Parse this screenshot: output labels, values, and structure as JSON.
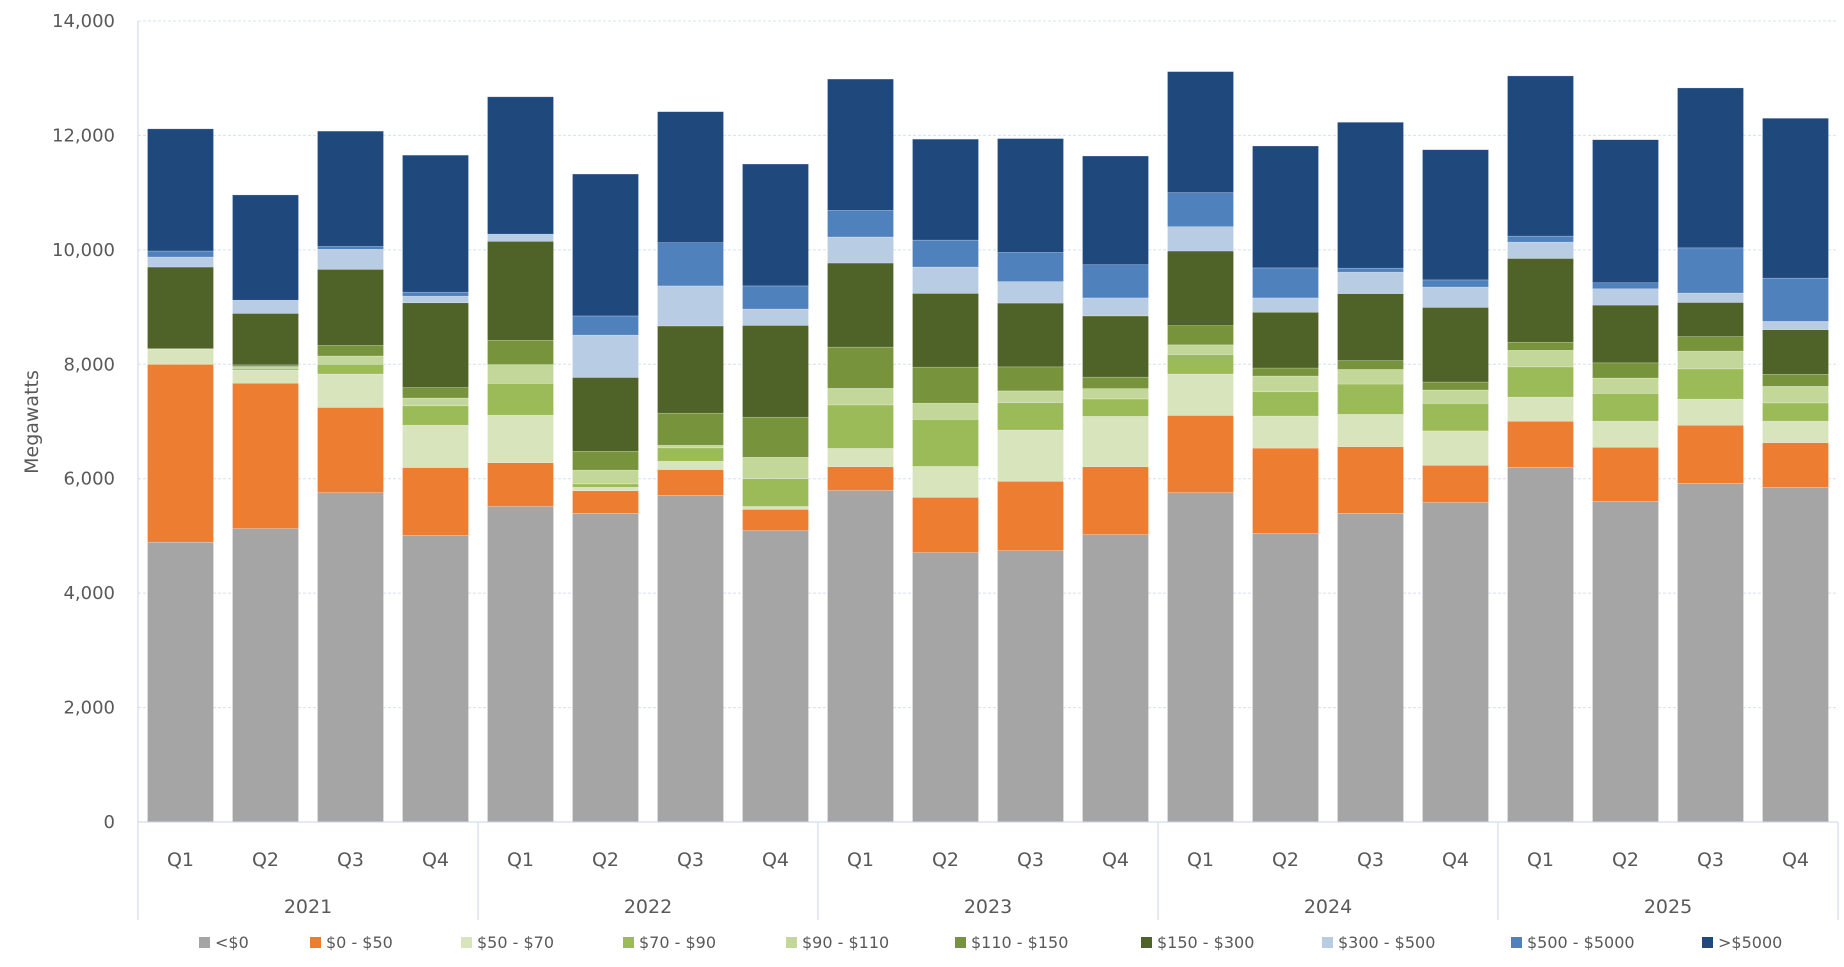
{
  "chart_data": {
    "type": "bar",
    "stacked": true,
    "title": "",
    "xlabel": "",
    "ylabel": "Megawatts",
    "ylim": [
      0,
      14000
    ],
    "yticks": [
      "0",
      "2,000",
      "4,000",
      "6,000",
      "8,000",
      "10,000",
      "12,000",
      "14,000"
    ],
    "ytick_values": [
      0,
      2000,
      4000,
      6000,
      8000,
      10000,
      12000,
      14000
    ],
    "grid": true,
    "legend_position": "bottom",
    "years": [
      "2021",
      "2022",
      "2023",
      "2024",
      "2025"
    ],
    "quarters": [
      "Q1",
      "Q2",
      "Q3",
      "Q4"
    ],
    "categories": [
      "2021 Q1",
      "2021 Q2",
      "2021 Q3",
      "2021 Q4",
      "2022 Q1",
      "2022 Q2",
      "2022 Q3",
      "2022 Q4",
      "2023 Q1",
      "2023 Q2",
      "2023 Q3",
      "2023 Q4",
      "2024 Q1",
      "2024 Q2",
      "2024 Q3",
      "2024 Q4",
      "2025 Q1",
      "2025 Q2",
      "2025 Q3",
      "2025 Q4"
    ],
    "series": [
      {
        "name": "<$0",
        "color": "#a5a5a5",
        "values": [
          4890,
          5130,
          5755,
          5010,
          5515,
          5395,
          5710,
          5095,
          5795,
          4710,
          4745,
          5025,
          5755,
          5045,
          5395,
          5585,
          6200,
          5605,
          5920,
          5850
        ]
      },
      {
        "name": "$0 - $50",
        "color": "#ed7d31",
        "values": [
          3110,
          2540,
          1490,
          1185,
          765,
          395,
          450,
          370,
          415,
          965,
          1210,
          1185,
          1350,
          1490,
          1165,
          650,
          805,
          945,
          1015,
          780
        ]
      },
      {
        "name": "$50 - $70",
        "color": "#d8e4bc",
        "values": [
          260,
          230,
          585,
          740,
          830,
          60,
          145,
          50,
          320,
          540,
          895,
          880,
          725,
          560,
          565,
          600,
          420,
          455,
          455,
          375
        ]
      },
      {
        "name": "$70 - $90",
        "color": "#9bbb59",
        "values": [
          0,
          30,
          170,
          340,
          555,
          60,
          235,
          485,
          760,
          820,
          480,
          305,
          340,
          425,
          530,
          480,
          530,
          485,
          530,
          320
        ]
      },
      {
        "name": "$90 - $110",
        "color": "#c4d79b",
        "values": [
          5,
          30,
          145,
          135,
          330,
          240,
          45,
          375,
          290,
          285,
          205,
          180,
          170,
          275,
          255,
          235,
          290,
          270,
          310,
          290
        ]
      },
      {
        "name": "$110 - $150",
        "color": "#77933c",
        "values": [
          10,
          30,
          185,
          185,
          425,
          330,
          560,
          700,
          720,
          630,
          420,
          200,
          335,
          140,
          155,
          140,
          140,
          265,
          255,
          210
        ]
      },
      {
        "name": "$150 - $300",
        "color": "#4f6228",
        "values": [
          1425,
          900,
          1330,
          1480,
          1730,
          1290,
          1525,
          1605,
          1470,
          1290,
          1115,
          1070,
          1305,
          975,
          1170,
          1305,
          1465,
          1010,
          595,
          780
        ]
      },
      {
        "name": "$300 - $500",
        "color": "#b8cce4",
        "values": [
          175,
          225,
          350,
          115,
          125,
          740,
          700,
          285,
          455,
          460,
          375,
          315,
          425,
          250,
          375,
          355,
          285,
          285,
          165,
          145
        ]
      },
      {
        "name": "$500 - $5000",
        "color": "#4f81bd",
        "values": [
          105,
          5,
          50,
          70,
          0,
          335,
          755,
          405,
          465,
          470,
          510,
          580,
          595,
          525,
          70,
          125,
          105,
          105,
          790,
          755
        ]
      },
      {
        "name": ">$5000",
        "color": "#1f497d",
        "values": [
          2135,
          1840,
          2015,
          2395,
          2400,
          2480,
          2290,
          2130,
          2295,
          1765,
          1990,
          1900,
          2115,
          2130,
          2550,
          2275,
          2800,
          2500,
          2795,
          2795
        ]
      }
    ]
  }
}
